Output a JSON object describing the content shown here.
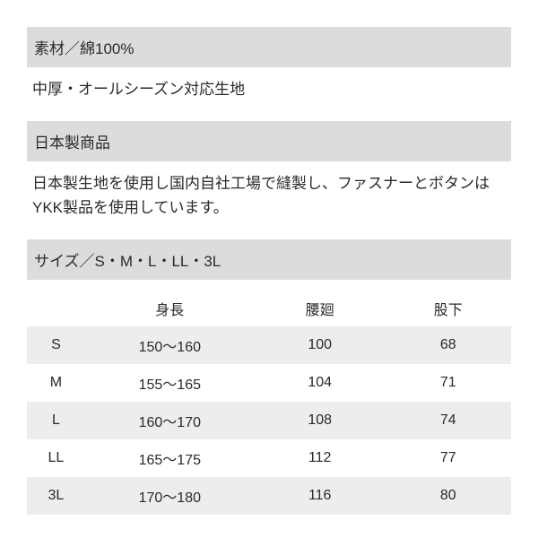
{
  "material_section": {
    "header": "素材／綿100%",
    "body": "中厚・オールシーズン対応生地"
  },
  "origin_section": {
    "header": "日本製商品",
    "body": "日本製生地を使用し国内自社工場で縫製し、ファスナーとボタンはYKK製品を使用しています。"
  },
  "size_section": {
    "header": "サイズ／S・M・L・LL・3L",
    "table": {
      "type": "table",
      "background_color": "#ffffff",
      "header_bg_color": "#dcdcdc",
      "row_stripe_color": "#ededed",
      "text_color": "#2a2a2a",
      "header_fontsize": 17,
      "cell_fontsize": 16,
      "columns": [
        {
          "key": "size",
          "label": "",
          "width_pct": 12,
          "align": "center"
        },
        {
          "key": "height",
          "label": "身長",
          "width_pct": 35,
          "align": "center"
        },
        {
          "key": "waist",
          "label": "腰廻",
          "width_pct": 27,
          "align": "center"
        },
        {
          "key": "inseam",
          "label": "股下",
          "width_pct": 26,
          "align": "center"
        }
      ],
      "rows": [
        {
          "size": "S",
          "height": "150〜160",
          "waist": "100",
          "inseam": "68"
        },
        {
          "size": "M",
          "height": "155〜165",
          "waist": "104",
          "inseam": "71"
        },
        {
          "size": "L",
          "height": "160〜170",
          "waist": "108",
          "inseam": "74"
        },
        {
          "size": "LL",
          "height": "165〜175",
          "waist": "112",
          "inseam": "77"
        },
        {
          "size": "3L",
          "height": "170〜180",
          "waist": "116",
          "inseam": "80"
        }
      ]
    }
  }
}
